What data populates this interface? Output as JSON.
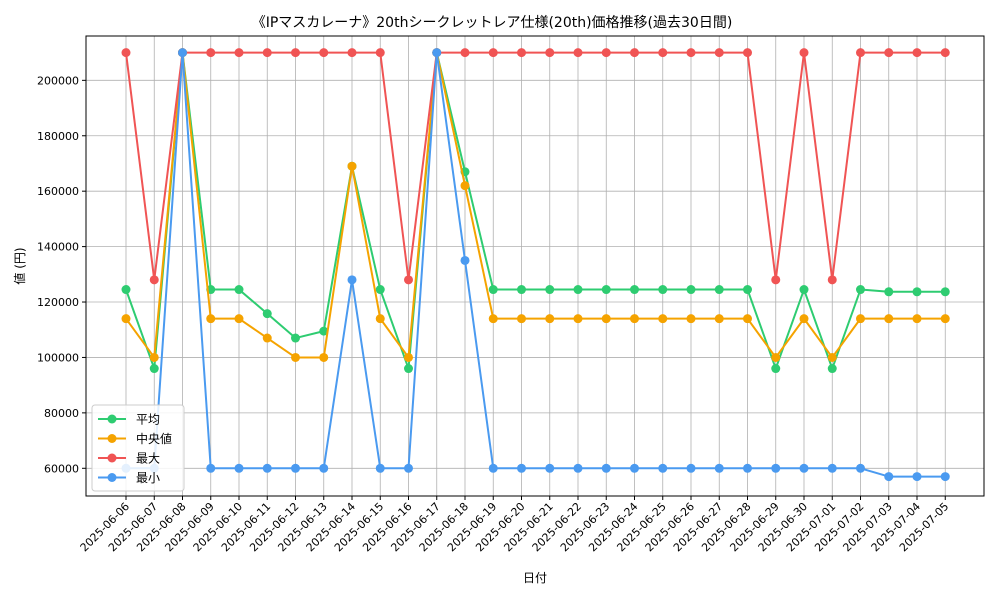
{
  "chart_data": {
    "type": "line",
    "title": "《IPマスカレーナ》20thシークレットレア仕様(20th)価格推移(過去30日間)",
    "xlabel": "日付",
    "ylabel": "値 (円)",
    "ylim": [
      50000,
      216000
    ],
    "yticks": [
      60000,
      80000,
      100000,
      120000,
      140000,
      160000,
      180000,
      200000
    ],
    "grid": true,
    "legend_position": "lower-left",
    "x": [
      "2025-06-06",
      "2025-06-07",
      "2025-06-08",
      "2025-06-09",
      "2025-06-10",
      "2025-06-11",
      "2025-06-12",
      "2025-06-13",
      "2025-06-14",
      "2025-06-15",
      "2025-06-16",
      "2025-06-17",
      "2025-06-18",
      "2025-06-19",
      "2025-06-20",
      "2025-06-21",
      "2025-06-22",
      "2025-06-23",
      "2025-06-24",
      "2025-06-25",
      "2025-06-26",
      "2025-06-27",
      "2025-06-28",
      "2025-06-29",
      "2025-06-30",
      "2025-07-01",
      "2025-07-02",
      "2025-07-03",
      "2025-07-04",
      "2025-07-05"
    ],
    "series": [
      {
        "name": "平均",
        "color": "#2ecc71",
        "values": [
          124500,
          96000,
          210000,
          124500,
          124500,
          115800,
          107000,
          109500,
          169000,
          124500,
          96000,
          210000,
          167000,
          124500,
          124500,
          124500,
          124500,
          124500,
          124500,
          124500,
          124500,
          124500,
          124500,
          96000,
          124500,
          96000,
          124500,
          123700,
          123700,
          123700
        ]
      },
      {
        "name": "中央値",
        "color": "#f5a300",
        "values": [
          114000,
          100000,
          210000,
          114000,
          114000,
          107000,
          100000,
          100000,
          169000,
          114000,
          100000,
          210000,
          162000,
          114000,
          114000,
          114000,
          114000,
          114000,
          114000,
          114000,
          114000,
          114000,
          114000,
          100000,
          114000,
          100000,
          114000,
          114000,
          114000,
          114000
        ]
      },
      {
        "name": "最大",
        "color": "#f05454",
        "values": [
          210000,
          128000,
          210000,
          210000,
          210000,
          210000,
          210000,
          210000,
          210000,
          210000,
          128000,
          210000,
          210000,
          210000,
          210000,
          210000,
          210000,
          210000,
          210000,
          210000,
          210000,
          210000,
          210000,
          128000,
          210000,
          128000,
          210000,
          210000,
          210000,
          210000
        ]
      },
      {
        "name": "最小",
        "color": "#4a9af0",
        "values": [
          60000,
          60000,
          210000,
          60000,
          60000,
          60000,
          60000,
          60000,
          128000,
          60000,
          60000,
          210000,
          135000,
          60000,
          60000,
          60000,
          60000,
          60000,
          60000,
          60000,
          60000,
          60000,
          60000,
          60000,
          60000,
          60000,
          60000,
          57000,
          57000,
          57000
        ]
      }
    ]
  }
}
